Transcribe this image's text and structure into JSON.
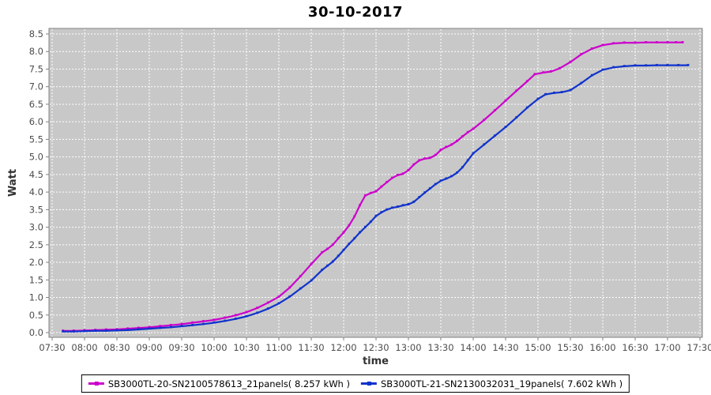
{
  "chart_data": {
    "type": "line",
    "title": "30-10-2017",
    "xlabel": "time",
    "ylabel": "Watt",
    "ylim": [
      0,
      8.5
    ],
    "ytick_step": 0.5,
    "xticks": [
      "07:30",
      "08:00",
      "08:30",
      "09:00",
      "09:30",
      "10:00",
      "10:30",
      "11:00",
      "11:30",
      "12:00",
      "12:30",
      "13:00",
      "13:30",
      "14:00",
      "14:30",
      "15:00",
      "15:30",
      "16:00",
      "16:30",
      "17:00",
      "17:30"
    ],
    "grid": true,
    "legend_position": "bottom-center",
    "colors": {
      "plot_background": "#c8c8c8",
      "grid": "#ffffff",
      "plot_border": "#808080",
      "tick_label": "#4d4d4d",
      "axis_label": "#333333",
      "title": "#000000",
      "legend_border": "#000000",
      "series1": "#cc00cc",
      "series2": "#1133cc"
    },
    "series": [
      {
        "name": "SB3000TL-20-SN2100578613_21panels( 8.257 kWh )",
        "color": "#cc00cc",
        "final_kwh": "8.257",
        "points": [
          [
            "07:40",
            0.05
          ],
          [
            "07:50",
            0.05
          ],
          [
            "08:00",
            0.06
          ],
          [
            "08:10",
            0.07
          ],
          [
            "08:20",
            0.08
          ],
          [
            "08:30",
            0.09
          ],
          [
            "08:40",
            0.11
          ],
          [
            "08:50",
            0.13
          ],
          [
            "09:00",
            0.15
          ],
          [
            "09:10",
            0.18
          ],
          [
            "09:20",
            0.21
          ],
          [
            "09:30",
            0.24
          ],
          [
            "09:40",
            0.28
          ],
          [
            "09:50",
            0.32
          ],
          [
            "10:00",
            0.36
          ],
          [
            "10:10",
            0.42
          ],
          [
            "10:20",
            0.49
          ],
          [
            "10:30",
            0.58
          ],
          [
            "10:40",
            0.7
          ],
          [
            "10:50",
            0.85
          ],
          [
            "11:00",
            1.02
          ],
          [
            "11:10",
            1.28
          ],
          [
            "11:20",
            1.6
          ],
          [
            "11:30",
            1.95
          ],
          [
            "11:40",
            2.28
          ],
          [
            "11:45",
            2.38
          ],
          [
            "11:50",
            2.5
          ],
          [
            "11:55",
            2.68
          ],
          [
            "12:00",
            2.85
          ],
          [
            "12:05",
            3.05
          ],
          [
            "12:10",
            3.3
          ],
          [
            "12:15",
            3.62
          ],
          [
            "12:20",
            3.9
          ],
          [
            "12:25",
            3.97
          ],
          [
            "12:30",
            4.02
          ],
          [
            "12:35",
            4.15
          ],
          [
            "12:40",
            4.28
          ],
          [
            "12:45",
            4.4
          ],
          [
            "12:50",
            4.48
          ],
          [
            "12:55",
            4.52
          ],
          [
            "13:00",
            4.62
          ],
          [
            "13:05",
            4.78
          ],
          [
            "13:10",
            4.9
          ],
          [
            "13:15",
            4.95
          ],
          [
            "13:20",
            4.97
          ],
          [
            "13:25",
            5.05
          ],
          [
            "13:30",
            5.2
          ],
          [
            "13:35",
            5.28
          ],
          [
            "13:40",
            5.35
          ],
          [
            "13:45",
            5.45
          ],
          [
            "13:50",
            5.58
          ],
          [
            "13:55",
            5.7
          ],
          [
            "14:00",
            5.8
          ],
          [
            "14:10",
            6.05
          ],
          [
            "14:20",
            6.32
          ],
          [
            "14:30",
            6.6
          ],
          [
            "14:40",
            6.88
          ],
          [
            "14:50",
            7.15
          ],
          [
            "14:57",
            7.35
          ],
          [
            "15:05",
            7.4
          ],
          [
            "15:12",
            7.43
          ],
          [
            "15:20",
            7.52
          ],
          [
            "15:30",
            7.7
          ],
          [
            "15:40",
            7.92
          ],
          [
            "15:50",
            8.08
          ],
          [
            "16:00",
            8.18
          ],
          [
            "16:10",
            8.23
          ],
          [
            "16:20",
            8.25
          ],
          [
            "16:30",
            8.25
          ],
          [
            "16:40",
            8.26
          ],
          [
            "16:50",
            8.26
          ],
          [
            "17:00",
            8.26
          ],
          [
            "17:08",
            8.26
          ],
          [
            "17:14",
            8.26
          ]
        ]
      },
      {
        "name": "SB3000TL-21-SN2130032031_19panels( 7.602 kWh )",
        "color": "#1133cc",
        "final_kwh": "7.602",
        "points": [
          [
            "07:40",
            0.03
          ],
          [
            "07:50",
            0.03
          ],
          [
            "08:00",
            0.04
          ],
          [
            "08:10",
            0.05
          ],
          [
            "08:20",
            0.05
          ],
          [
            "08:30",
            0.06
          ],
          [
            "08:40",
            0.07
          ],
          [
            "08:50",
            0.09
          ],
          [
            "09:00",
            0.11
          ],
          [
            "09:10",
            0.13
          ],
          [
            "09:20",
            0.15
          ],
          [
            "09:30",
            0.18
          ],
          [
            "09:40",
            0.21
          ],
          [
            "09:50",
            0.24
          ],
          [
            "10:00",
            0.28
          ],
          [
            "10:10",
            0.33
          ],
          [
            "10:20",
            0.39
          ],
          [
            "10:30",
            0.46
          ],
          [
            "10:40",
            0.56
          ],
          [
            "10:50",
            0.68
          ],
          [
            "11:00",
            0.83
          ],
          [
            "11:10",
            1.02
          ],
          [
            "11:20",
            1.25
          ],
          [
            "11:30",
            1.48
          ],
          [
            "11:40",
            1.78
          ],
          [
            "11:45",
            1.9
          ],
          [
            "11:50",
            2.02
          ],
          [
            "11:55",
            2.18
          ],
          [
            "12:00",
            2.35
          ],
          [
            "12:05",
            2.52
          ],
          [
            "12:10",
            2.68
          ],
          [
            "12:15",
            2.85
          ],
          [
            "12:20",
            3.0
          ],
          [
            "12:25",
            3.15
          ],
          [
            "12:30",
            3.32
          ],
          [
            "12:35",
            3.42
          ],
          [
            "12:40",
            3.5
          ],
          [
            "12:45",
            3.55
          ],
          [
            "12:50",
            3.58
          ],
          [
            "12:55",
            3.62
          ],
          [
            "13:00",
            3.65
          ],
          [
            "13:05",
            3.72
          ],
          [
            "13:10",
            3.85
          ],
          [
            "13:15",
            3.98
          ],
          [
            "13:20",
            4.1
          ],
          [
            "13:25",
            4.22
          ],
          [
            "13:30",
            4.32
          ],
          [
            "13:35",
            4.38
          ],
          [
            "13:40",
            4.45
          ],
          [
            "13:45",
            4.55
          ],
          [
            "13:50",
            4.7
          ],
          [
            "13:55",
            4.9
          ],
          [
            "14:00",
            5.1
          ],
          [
            "14:10",
            5.35
          ],
          [
            "14:20",
            5.6
          ],
          [
            "14:30",
            5.85
          ],
          [
            "14:40",
            6.12
          ],
          [
            "14:50",
            6.4
          ],
          [
            "15:00",
            6.65
          ],
          [
            "15:07",
            6.78
          ],
          [
            "15:15",
            6.82
          ],
          [
            "15:22",
            6.84
          ],
          [
            "15:30",
            6.9
          ],
          [
            "15:40",
            7.1
          ],
          [
            "15:50",
            7.32
          ],
          [
            "16:00",
            7.48
          ],
          [
            "16:10",
            7.55
          ],
          [
            "16:20",
            7.58
          ],
          [
            "16:30",
            7.6
          ],
          [
            "16:40",
            7.6
          ],
          [
            "16:50",
            7.61
          ],
          [
            "17:00",
            7.61
          ],
          [
            "17:10",
            7.61
          ],
          [
            "17:19",
            7.61
          ]
        ]
      }
    ]
  }
}
